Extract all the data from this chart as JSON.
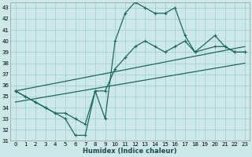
{
  "title": "",
  "xlabel": "Humidex (Indice chaleur)",
  "ylabel": "",
  "bg_color": "#cce8e8",
  "line_color": "#1a6b5a",
  "grid_color": "#aad4d4",
  "ylim": [
    31,
    43.5
  ],
  "xlim": [
    -0.5,
    23.5
  ],
  "yticks": [
    31,
    32,
    33,
    34,
    35,
    36,
    37,
    38,
    39,
    40,
    41,
    42,
    43
  ],
  "xticks": [
    0,
    1,
    2,
    3,
    4,
    5,
    6,
    7,
    8,
    9,
    10,
    11,
    12,
    13,
    14,
    15,
    16,
    17,
    18,
    19,
    20,
    21,
    22,
    23
  ],
  "main_line": {
    "x": [
      0,
      1,
      2,
      3,
      4,
      5,
      6,
      7,
      8,
      9,
      10,
      11,
      12,
      13,
      14,
      15,
      16,
      17,
      18,
      20,
      21,
      22,
      23
    ],
    "y": [
      35.5,
      35.0,
      34.5,
      34.0,
      33.5,
      33.0,
      31.5,
      31.5,
      35.5,
      33.0,
      40.0,
      42.5,
      43.5,
      43.0,
      42.5,
      42.5,
      43.0,
      40.5,
      39.0,
      40.5,
      39.5,
      39.0,
      39.0
    ]
  },
  "line2": {
    "x": [
      0,
      1,
      2,
      3,
      4,
      5,
      6,
      7,
      8,
      9,
      10,
      11,
      12,
      13,
      14,
      15,
      16,
      17,
      18,
      20,
      21,
      22,
      23
    ],
    "y": [
      35.5,
      35.0,
      34.5,
      34.0,
      33.5,
      33.5,
      33.0,
      32.5,
      35.5,
      35.5,
      37.5,
      38.5,
      39.5,
      40.0,
      39.5,
      39.0,
      39.5,
      40.0,
      39.0,
      39.5,
      39.5,
      39.0,
      39.0
    ]
  },
  "line3": {
    "x": [
      0,
      23
    ],
    "y": [
      35.5,
      39.5
    ]
  },
  "line4": {
    "x": [
      0,
      23
    ],
    "y": [
      34.5,
      38.0
    ]
  }
}
